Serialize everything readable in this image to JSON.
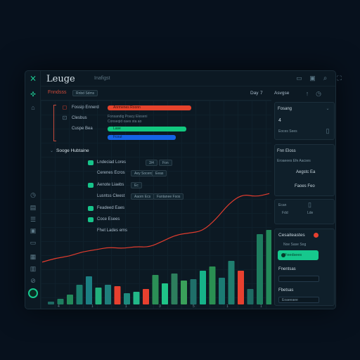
{
  "app": {
    "title": "Leuge",
    "crumb": "Inafigst"
  },
  "rail_icons": [
    "logo-icon",
    "graph-icon",
    "home-icon",
    "clock-icon",
    "chart-icon",
    "list-icon",
    "image-icon",
    "doc-icon",
    "calendar-icon",
    "report-icon",
    "edit-icon",
    "status-dot-icon"
  ],
  "toolbar": {
    "active_tab": "Fnndsss",
    "filter_pill": "Rnbd Sdms",
    "right_label": "Day",
    "right_badge": "7"
  },
  "header_icons": [
    "panel-icon",
    "window-icon",
    "search-icon",
    "fullscreen-icon"
  ],
  "status_block": {
    "rows": [
      {
        "label": "Fossip Ennerd",
        "value": "Anrmenes Roonn",
        "bar_color": "#e5432c"
      },
      {
        "label": "Clesbus",
        "value": "Fonsandig Poacy Eleseni",
        "value2": "Conseqid oaes sta ao"
      },
      {
        "label": "Cuspe Bea",
        "value": "Lase",
        "bar_color": "#12c87f"
      },
      {
        "label": "",
        "value": "Fcout",
        "bar_color": "#1463e6"
      }
    ]
  },
  "list_section": {
    "heading": "Sooge Hubtaine",
    "items": [
      {
        "label": "Lndeciad Lores",
        "tags": [
          "3/4",
          "Fon"
        ]
      },
      {
        "label": "Cerenes Ecros",
        "tags": [
          "Aey Socenx",
          "Eeas"
        ]
      },
      {
        "label": "Aenote Liaebs",
        "tags": [
          "Ec"
        ]
      },
      {
        "label": "Lusntss Cleest",
        "tags": [
          "Aaorn Ecs",
          "Fantanee Fsos"
        ]
      },
      {
        "label": "Feadeed Eaes",
        "tags": []
      },
      {
        "label": "Coce Esees",
        "tags": []
      },
      {
        "label": "Fhet Lades ems",
        "tags": []
      }
    ]
  },
  "chart_data": {
    "type": "bar",
    "series": [
      {
        "values": [
          2,
          4,
          7,
          14,
          20,
          12,
          14,
          13,
          8,
          9,
          11,
          21,
          15,
          22,
          17,
          18,
          24,
          27,
          19,
          31,
          24,
          11,
          50,
          53,
          17,
          22,
          16
        ]
      },
      {
        "values": [
          22,
          28,
          31,
          38,
          41,
          45,
          43,
          46,
          45,
          54,
          64,
          67,
          70,
          88,
          113,
          127,
          123,
          128
        ]
      }
    ],
    "bar_colors": [
      "#1e6a63",
      "#1e7d5f",
      "#238a5a",
      "#1b7d6c",
      "#1c7f83",
      "#22b07c",
      "#1f7e7b",
      "#e7402f",
      "#1e8a7e",
      "#22b888",
      "#e7402f",
      "#2b8f56",
      "#1fc488",
      "#2d7f5d",
      "#3aa05a",
      "#1f6f69",
      "#16b389",
      "#2a8f52",
      "#1b7b73",
      "#1f7e6e",
      "#e7402f"
    ],
    "line_color": "#e03c2e",
    "x_ticks": [
      "4",
      "1",
      "1",
      "3",
      "5",
      "1",
      "1"
    ]
  },
  "side": {
    "card1": {
      "title": "Fosang",
      "value": "4",
      "sub": "Eoces Sees"
    },
    "card2": {
      "title": "Fnn Eloss",
      "sub": "Eroaeees Efe Aacses",
      "value": "Aegstc Ea",
      "value2": "Faoes Feo"
    },
    "card3": {
      "a": "Ecan",
      "b": "Fdd",
      "c": "Lde"
    },
    "card4": {
      "title": "Cesaiteastes",
      "sub": "Noe Sase Sog",
      "button": "Feedsees",
      "label1": "Fnentsas",
      "field1": "",
      "label2": "Fbetsas",
      "field2": "Eoaeeaee"
    }
  }
}
